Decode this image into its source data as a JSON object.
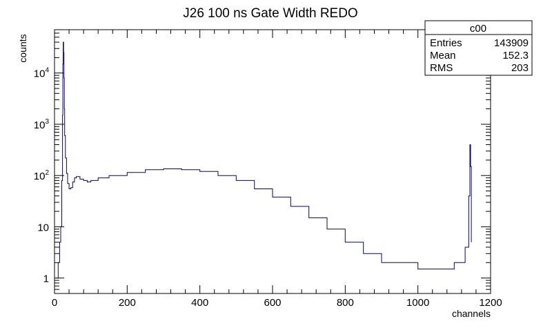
{
  "chart_data": {
    "type": "line",
    "title": "J26 100 ns Gate Width REDO",
    "xlabel": "channels",
    "ylabel": "counts",
    "xlim": [
      0,
      1200
    ],
    "ylim": [
      0.5,
      70000
    ],
    "y_scale": "log",
    "grid": false,
    "line_color": "#000080",
    "x_ticks": [
      {
        "value": 0,
        "label": "0"
      },
      {
        "value": 200,
        "label": "200"
      },
      {
        "value": 400,
        "label": "400"
      },
      {
        "value": 600,
        "label": "600"
      },
      {
        "value": 800,
        "label": "800"
      },
      {
        "value": 1000,
        "label": "1000"
      },
      {
        "value": 1200,
        "label": "1200"
      }
    ],
    "y_ticks": [
      {
        "value": 1,
        "base": "1",
        "exp": ""
      },
      {
        "value": 10,
        "base": "10",
        "exp": ""
      },
      {
        "value": 100,
        "base": "10",
        "exp": "2"
      },
      {
        "value": 1000,
        "base": "10",
        "exp": "3"
      },
      {
        "value": 10000,
        "base": "10",
        "exp": "4"
      }
    ],
    "stats_box": {
      "name": "c00",
      "rows": [
        {
          "label": "Entries",
          "value": "143909"
        },
        {
          "label": "Mean",
          "value": "152.3"
        },
        {
          "label": "RMS",
          "value": "203"
        }
      ]
    },
    "series": [
      {
        "x": [
          5,
          10,
          14,
          17,
          20,
          22,
          23,
          24,
          25,
          26,
          27,
          28,
          30,
          33,
          36,
          40,
          45,
          50,
          55,
          60,
          70,
          80,
          90,
          100,
          120,
          150,
          200,
          250,
          300,
          350,
          400,
          450,
          500,
          550,
          600,
          650,
          700,
          750,
          800,
          850,
          900,
          950,
          1000,
          1050,
          1100,
          1130,
          1140,
          1143,
          1145,
          1147
        ],
        "y": [
          1,
          2,
          5,
          10,
          80,
          1500,
          15000,
          40000,
          25000,
          8000,
          2000,
          600,
          220,
          110,
          70,
          55,
          58,
          75,
          90,
          95,
          85,
          80,
          75,
          80,
          90,
          100,
          115,
          130,
          135,
          130,
          120,
          100,
          80,
          55,
          38,
          25,
          15,
          9,
          5,
          3,
          2,
          2,
          1.5,
          1.5,
          2,
          4,
          40,
          400,
          150,
          5
        ]
      }
    ]
  }
}
